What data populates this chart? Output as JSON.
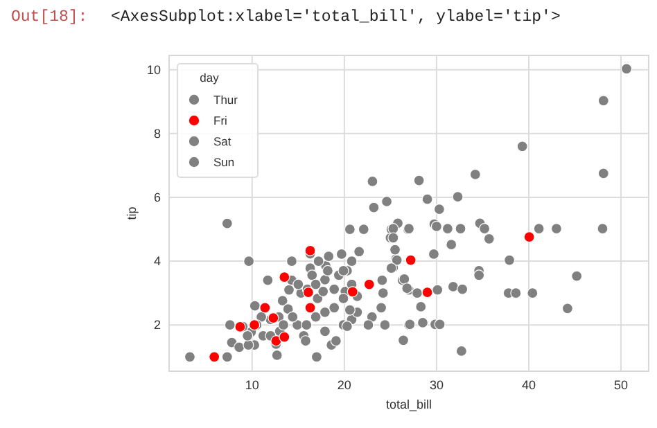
{
  "chart_data": {
    "type": "scatter",
    "title": "<AxesSubplot:xlabel='total_bill', ylabel='tip'>",
    "annotations": [
      "Out[18]:"
    ],
    "xlabel": "total_bill",
    "ylabel": "tip",
    "legend_title": "day",
    "legend": "top left",
    "grid": true,
    "marker": "circle",
    "xlim": [
      1.0,
      53.0
    ],
    "ylim": [
      0.55,
      10.45
    ],
    "xticks": [
      10,
      20,
      30,
      40,
      50
    ],
    "yticks": [
      2,
      4,
      6,
      8,
      10
    ],
    "series": [
      {
        "name": "Thur",
        "color": "#808080"
      },
      {
        "name": "Fri",
        "color": "#ff0000",
        "x": [
          5.9,
          8.7,
          10.25,
          11.4,
          12.3,
          12.6,
          13.5,
          13.5,
          16.3,
          16.3,
          16.1,
          20.9,
          22.7,
          27.2,
          29.0,
          40.05
        ],
        "values": [
          1.0,
          1.94,
          2.0,
          2.54,
          2.22,
          1.5,
          1.62,
          3.5,
          4.33,
          2.54,
          3.02,
          3.04,
          3.27,
          4.03,
          3.02,
          4.76
        ]
      },
      {
        "name": "Sat",
        "color": "#808080"
      },
      {
        "name": "Sun",
        "color": "#808080",
        "x": [
          3.25,
          7.3,
          7.3,
          9.65,
          7.6,
          7.8,
          8.6,
          9.9,
          10.3,
          10.25,
          9.6,
          11.7,
          12.6,
          12.7,
          13.0,
          12.9,
          13.3,
          13.9,
          14.3,
          14.3,
          14.9,
          15.3,
          15.6,
          15.8,
          16.3,
          16.3,
          16.5,
          17.0,
          17.1,
          17.7,
          17.9,
          18.0,
          18.6,
          18.3,
          19.1,
          19.7,
          20.1,
          19.9,
          20.6,
          20.8,
          22.1,
          21.6,
          23.05,
          23.2,
          24.6,
          25.0,
          25.1,
          26.9,
          25.6,
          25.3,
          24.1,
          24.0,
          23.0,
          24.4,
          22.6,
          27.0,
          26.3,
          27.0,
          24.2,
          14.0,
          15.0,
          16.0,
          16.9,
          17.9,
          18.9,
          19.4,
          20.3,
          20.8,
          16.9,
          15.9,
          14.4,
          13.4,
          12.0,
          11.0,
          10.5,
          11.2,
          12.0,
          9.5,
          9.0,
          18.9,
          17.9,
          19.9,
          21.4,
          18.2,
          17.2,
          20.8,
          19.9,
          21.4,
          20.6,
          20.3,
          50.6,
          48.1,
          48.1,
          48.0,
          39.3,
          34.2,
          28.1,
          29.0,
          30.3,
          32.3,
          29.75,
          30.0,
          31.2,
          32.6,
          34.7,
          35.2,
          35.7,
          41.1,
          43.0,
          31.6,
          29.7,
          27.0,
          25.8,
          25.3,
          25.3,
          25.5,
          25.7,
          25.1,
          26.5,
          26.8,
          27.9,
          30.1,
          31.8,
          32.8,
          28.3,
          28.5,
          27.1,
          29.85,
          30.35,
          26.4,
          32.7,
          34.6,
          34.6,
          37.9,
          37.8,
          38.6,
          40.4,
          45.2,
          44.2
        ],
        "values": [
          1.0,
          1.0,
          5.18,
          4.0,
          2.0,
          1.45,
          1.3,
          1.78,
          2.6,
          1.37,
          1.37,
          3.4,
          1.4,
          1.05,
          1.8,
          2.25,
          2.76,
          2.5,
          3.4,
          4.0,
          2.0,
          3.0,
          1.66,
          1.5,
          3.78,
          4.23,
          3.56,
          1.0,
          2.83,
          3.05,
          1.8,
          3.85,
          1.37,
          4.15,
          1.5,
          4.22,
          3.05,
          2.0,
          5.0,
          2.17,
          5.0,
          4.3,
          6.5,
          5.68,
          5.87,
          4.73,
          5.0,
          5.0,
          4.07,
          3.8,
          3.4,
          2.54,
          2.25,
          2.0,
          2.0,
          2.0,
          3.4,
          3.1,
          3.0,
          3.1,
          3.27,
          3.12,
          3.27,
          3.42,
          3.12,
          3.56,
          3.7,
          3.27,
          2.25,
          2.0,
          2.25,
          2.0,
          2.17,
          2.25,
          2.0,
          1.66,
          1.66,
          1.66,
          1.95,
          2.54,
          2.4,
          2.83,
          2.9,
          3.7,
          4.0,
          4.0,
          3.7,
          2.4,
          2.47,
          1.96,
          10.03,
          9.03,
          6.75,
          5.02,
          7.6,
          6.72,
          6.53,
          5.94,
          5.63,
          6.02,
          5.16,
          5.09,
          5.02,
          5.02,
          5.19,
          5.02,
          4.7,
          5.02,
          5.02,
          4.52,
          4.22,
          5.02,
          5.19,
          5.02,
          4.73,
          4.36,
          4.03,
          3.78,
          3.44,
          3.15,
          3.0,
          3.1,
          3.2,
          3.12,
          2.57,
          2.07,
          2.02,
          2.02,
          2.02,
          1.52,
          1.18,
          3.7,
          3.56,
          4.03,
          3.0,
          3.0,
          3.0,
          3.53,
          2.52
        ]
      }
    ]
  }
}
